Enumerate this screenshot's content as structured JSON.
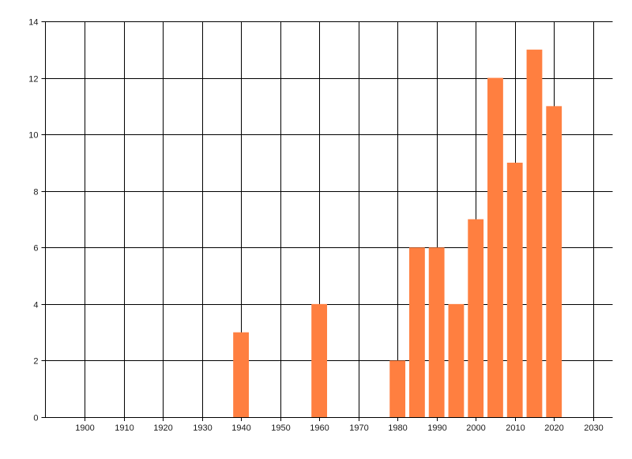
{
  "chart_data": {
    "type": "bar",
    "x": [
      1940,
      1960,
      1980,
      1985,
      1990,
      1995,
      2000,
      2005,
      2010,
      2015,
      2020
    ],
    "values": [
      3,
      4,
      2,
      6,
      6,
      4,
      7,
      12,
      9,
      13,
      11
    ],
    "xlim": [
      1890,
      2035
    ],
    "ylim": [
      0,
      14
    ],
    "xticks": [
      1900,
      1910,
      1920,
      1930,
      1940,
      1950,
      1960,
      1970,
      1980,
      1990,
      2000,
      2010,
      2020,
      2030
    ],
    "yticks": [
      0,
      2,
      4,
      6,
      8,
      10,
      12,
      14
    ],
    "bar_width_years": 4,
    "grid": true,
    "title": "",
    "xlabel": "",
    "ylabel": "",
    "colors": {
      "bar": "#FF7F40",
      "grid": "#000000"
    }
  }
}
